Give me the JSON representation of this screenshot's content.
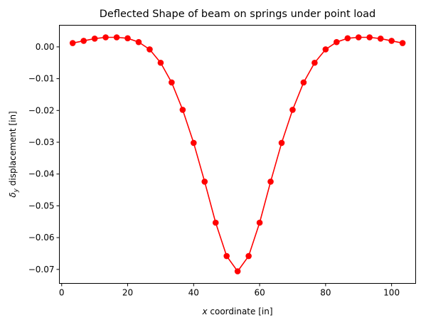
{
  "chart_data": {
    "type": "line",
    "title": "Deflected Shape of beam on springs under point load",
    "xlabel": "x coordinate [in]",
    "ylabel": "δy displacement [in]",
    "xlim": [
      -0.7,
      107.3
    ],
    "ylim": [
      -0.0744,
      0.0068
    ],
    "x_ticks": [
      0,
      20,
      40,
      60,
      80,
      100
    ],
    "y_ticks": [
      0.0,
      -0.01,
      -0.02,
      -0.03,
      -0.04,
      -0.05,
      -0.06,
      -0.07
    ],
    "x_tick_labels": [
      "0",
      "20",
      "40",
      "60",
      "80",
      "100"
    ],
    "y_tick_labels": [
      "0.00",
      "−0.01",
      "−0.02",
      "−0.03",
      "−0.04",
      "−0.05",
      "−0.06",
      "−0.07"
    ],
    "grid": false,
    "series": [
      {
        "color": "#ff0000",
        "marker": "circle",
        "x": [
          3.33,
          6.67,
          10.0,
          13.33,
          16.67,
          20.0,
          23.33,
          26.67,
          30.0,
          33.33,
          36.67,
          40.0,
          43.33,
          46.67,
          50.0,
          53.33,
          56.67,
          60.0,
          63.33,
          66.67,
          70.0,
          73.33,
          76.67,
          80.0,
          83.33,
          86.67,
          90.0,
          93.33,
          96.67,
          100.0,
          103.33
        ],
        "y": [
          0.0012,
          0.0019,
          0.0026,
          0.003,
          0.003,
          0.0027,
          0.0015,
          -0.0008,
          -0.005,
          -0.0112,
          -0.0198,
          -0.0302,
          -0.0424,
          -0.0553,
          -0.0658,
          -0.0706,
          -0.0658,
          -0.0553,
          -0.0424,
          -0.0302,
          -0.0198,
          -0.0112,
          -0.005,
          -0.0008,
          0.0015,
          0.0027,
          0.003,
          0.003,
          0.0026,
          0.0019,
          0.0012
        ]
      }
    ]
  }
}
